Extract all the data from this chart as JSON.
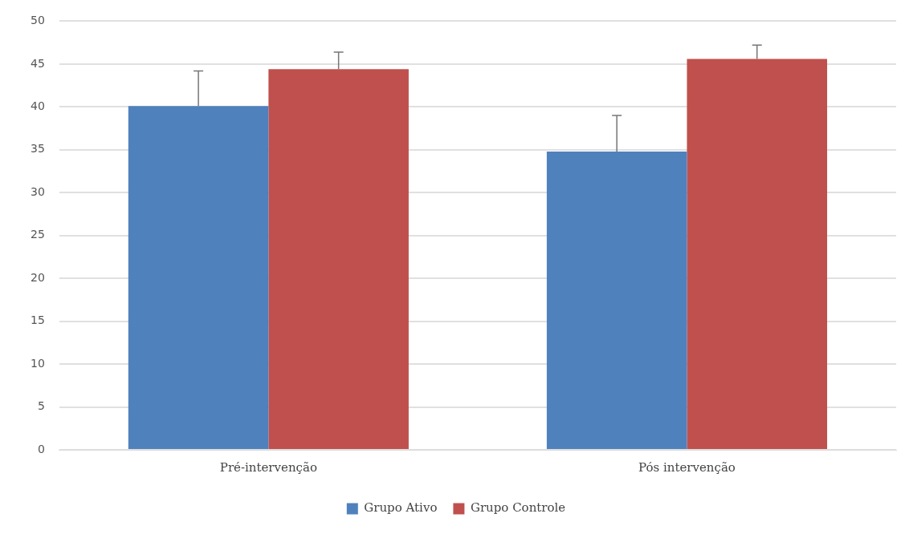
{
  "chart_data": {
    "type": "bar",
    "categories": [
      "Pré-intervenção",
      "Pós intervenção"
    ],
    "series": [
      {
        "name": "Grupo Ativo",
        "color": "#4f81bd",
        "values": [
          40.1,
          34.8
        ],
        "errors": [
          [
            40.1,
            44.2
          ],
          [
            34.8,
            39.0
          ]
        ]
      },
      {
        "name": "Grupo Controle",
        "color": "#c0504d",
        "values": [
          44.4,
          45.6
        ],
        "errors": [
          [
            44.4,
            46.4
          ],
          [
            45.6,
            47.2
          ]
        ]
      }
    ],
    "ylim": [
      0,
      50
    ],
    "yticks": [
      0,
      5,
      10,
      15,
      20,
      25,
      30,
      35,
      40,
      45,
      50
    ],
    "grid": "y",
    "legend": "bottom"
  }
}
